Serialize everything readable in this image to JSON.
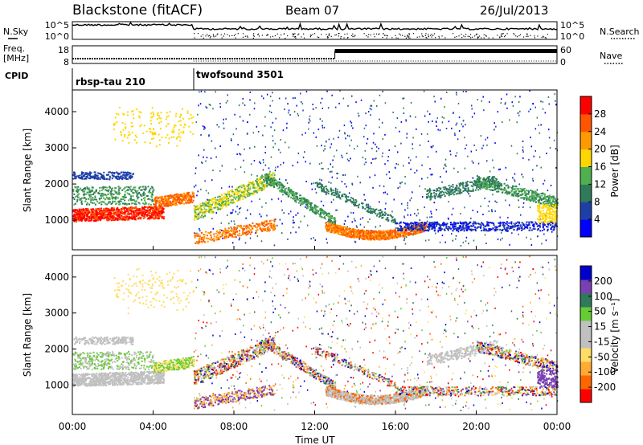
{
  "header": {
    "station": "Blackstone (fitACF)",
    "beam": "Beam 07",
    "date": "26/Jul/2013"
  },
  "nsky_panel": {
    "left_label": "N.Sky",
    "right_label": "N.Search",
    "left_ticks": [
      "10^5",
      "10^0"
    ],
    "right_ticks": [
      "10^5",
      "10^0"
    ]
  },
  "freq_panel": {
    "left_label_line1": "Freq.",
    "left_label_line2": "[MHz]",
    "right_label": "Nave",
    "left_ticks": [
      "18",
      "8"
    ],
    "right_ticks": [
      "60",
      "0"
    ]
  },
  "cpid": {
    "label": "CPID",
    "programs": [
      {
        "name": "rbsp-tau 210",
        "start_hour": 0
      },
      {
        "name": "twofsound 3501",
        "start_hour": 6
      }
    ]
  },
  "colors": {
    "power_scale": [
      "#0000ff",
      "#1f3fa8",
      "#2e7a5a",
      "#4fb04f",
      "#ffd700",
      "#ff9900",
      "#ff5500",
      "#ff0000"
    ],
    "velocity_scale": [
      "#ff0000",
      "#ff6600",
      "#ffaa33",
      "#ffdd66",
      "#c0c0c0",
      "#c0c0c0",
      "#66cc33",
      "#2e7a5a",
      "#7a3fb0",
      "#0000cc"
    ]
  },
  "chart_data": [
    {
      "type": "heatmap",
      "name": "power",
      "ylabel": "Slant Range [km]",
      "yticks": [
        1000,
        2000,
        3000,
        4000
      ],
      "ylim": [
        180,
        4600
      ],
      "xlim": [
        0,
        24
      ],
      "colorbar": {
        "label": "Power [dB]",
        "ticks": [
          "28",
          "24",
          "20",
          "16",
          "12",
          "8",
          "4"
        ],
        "range": [
          0,
          30
        ]
      }
    },
    {
      "type": "heatmap",
      "name": "velocity",
      "ylabel": "Slant Range [km]",
      "yticks": [
        1000,
        2000,
        3000,
        4000
      ],
      "ylim": [
        180,
        4600
      ],
      "xlim": [
        0,
        24
      ],
      "colorbar": {
        "label": "Velocity [m s⁻¹]",
        "ticks": [
          "200",
          "100",
          "50",
          "15",
          "-15",
          "-50",
          "-100",
          "-200"
        ]
      }
    }
  ],
  "x_axis": {
    "label": "Time UT",
    "ticks": [
      "00:00",
      "04:00",
      "08:00",
      "12:00",
      "16:00",
      "20:00",
      "00:00"
    ]
  }
}
